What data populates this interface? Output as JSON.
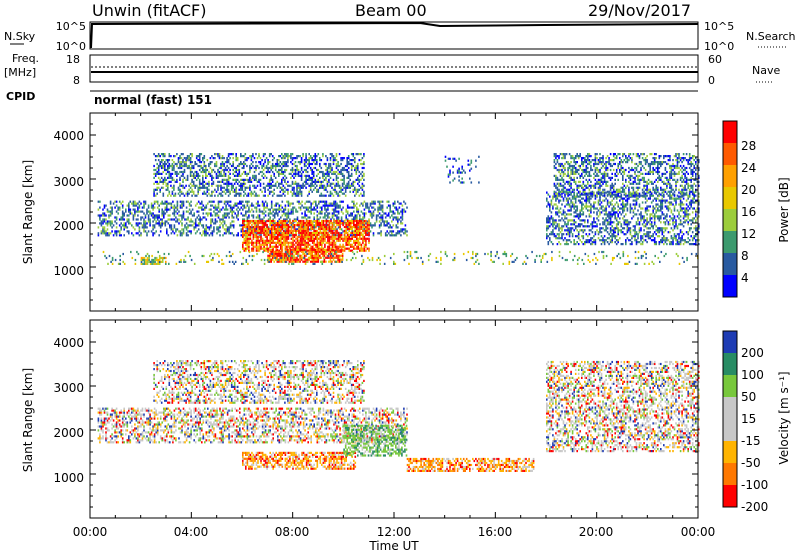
{
  "header": {
    "station": "Unwin (fitACF)",
    "beam": "Beam 00",
    "date": "29/Nov/2017"
  },
  "params": {
    "nsky_label": "N.Sky",
    "nsky_ticks": [
      "10^5",
      "10^0"
    ],
    "nsearch_label": "N.Search",
    "nsearch_ticks": [
      "10^5",
      "10^0"
    ],
    "freq_label": "Freq.",
    "freq_unit": "[MHz]",
    "freq_ticks": [
      "18",
      "8"
    ],
    "nave_label": "Nave",
    "nave_ticks": [
      "60",
      "0"
    ],
    "cpid_label": "CPID",
    "cpid_value": "normal (fast) 151"
  },
  "axes": {
    "ylabel": "Slant Range [km]",
    "yticks": [
      "4000",
      "3000",
      "2000",
      "1000"
    ],
    "xlabel": "Time UT",
    "xticks": [
      "00:00",
      "04:00",
      "08:00",
      "12:00",
      "16:00",
      "20:00",
      "00:00"
    ]
  },
  "power_scale": {
    "label": "Power [dB]",
    "ticks": [
      "28",
      "24",
      "20",
      "16",
      "12",
      "8",
      "4"
    ],
    "colors": [
      "#ff0000",
      "#ff5a00",
      "#ffa000",
      "#e8c800",
      "#9ccd3c",
      "#3c9a6e",
      "#285aa0",
      "#0000ff"
    ]
  },
  "velocity_scale": {
    "label": "Velocity [m s⁻¹]",
    "ticks": [
      "200",
      "100",
      "50",
      "15",
      "-15",
      "-50",
      "-100",
      "-200"
    ],
    "colors": [
      "#1e3cb4",
      "#288c64",
      "#78c83c",
      "#c8c8c8",
      "#c8c8c8",
      "#ffb400",
      "#ff7800",
      "#ff0000"
    ]
  },
  "chart_data": {
    "type": "heatmap",
    "x_range_hours": [
      0,
      24
    ],
    "y_range_km": [
      0,
      4500
    ],
    "panels": [
      {
        "name": "power",
        "regions": [
          {
            "t0": 0.3,
            "t1": 12.5,
            "r0": 1700,
            "r1": 2500,
            "level": "low"
          },
          {
            "t0": 2.5,
            "t1": 10.8,
            "r0": 2600,
            "r1": 3550,
            "level": "low"
          },
          {
            "t0": 6.0,
            "t1": 11.0,
            "r0": 1350,
            "r1": 2050,
            "level": "high"
          },
          {
            "t0": 7.0,
            "t1": 10.0,
            "r0": 1100,
            "r1": 1400,
            "level": "high"
          },
          {
            "t0": 2.0,
            "t1": 3.0,
            "r0": 1050,
            "r1": 1200,
            "level": "mid"
          },
          {
            "t0": 0.5,
            "t1": 24.0,
            "r0": 1050,
            "r1": 1350,
            "level": "scatter"
          },
          {
            "t0": 18.0,
            "t1": 24.0,
            "r0": 1500,
            "r1": 2700,
            "level": "low"
          },
          {
            "t0": 18.3,
            "t1": 24.0,
            "r0": 2600,
            "r1": 3550,
            "level": "low"
          },
          {
            "t0": 14.0,
            "t1": 15.5,
            "r0": 2900,
            "r1": 3500,
            "level": "sparse"
          }
        ]
      },
      {
        "name": "velocity",
        "regions": [
          {
            "t0": 0.3,
            "t1": 12.5,
            "r0": 1700,
            "r1": 2500,
            "level": "zero"
          },
          {
            "t0": 2.5,
            "t1": 10.8,
            "r0": 2600,
            "r1": 3550,
            "level": "zero"
          },
          {
            "t0": 6.0,
            "t1": 10.5,
            "r0": 1100,
            "r1": 1500,
            "level": "neg"
          },
          {
            "t0": 10.0,
            "t1": 12.5,
            "r0": 1400,
            "r1": 2100,
            "level": "pos"
          },
          {
            "t0": 12.5,
            "t1": 17.5,
            "r0": 1050,
            "r1": 1350,
            "level": "neg"
          },
          {
            "t0": 18.0,
            "t1": 24.0,
            "r0": 1500,
            "r1": 3550,
            "level": "zero"
          }
        ]
      }
    ]
  }
}
